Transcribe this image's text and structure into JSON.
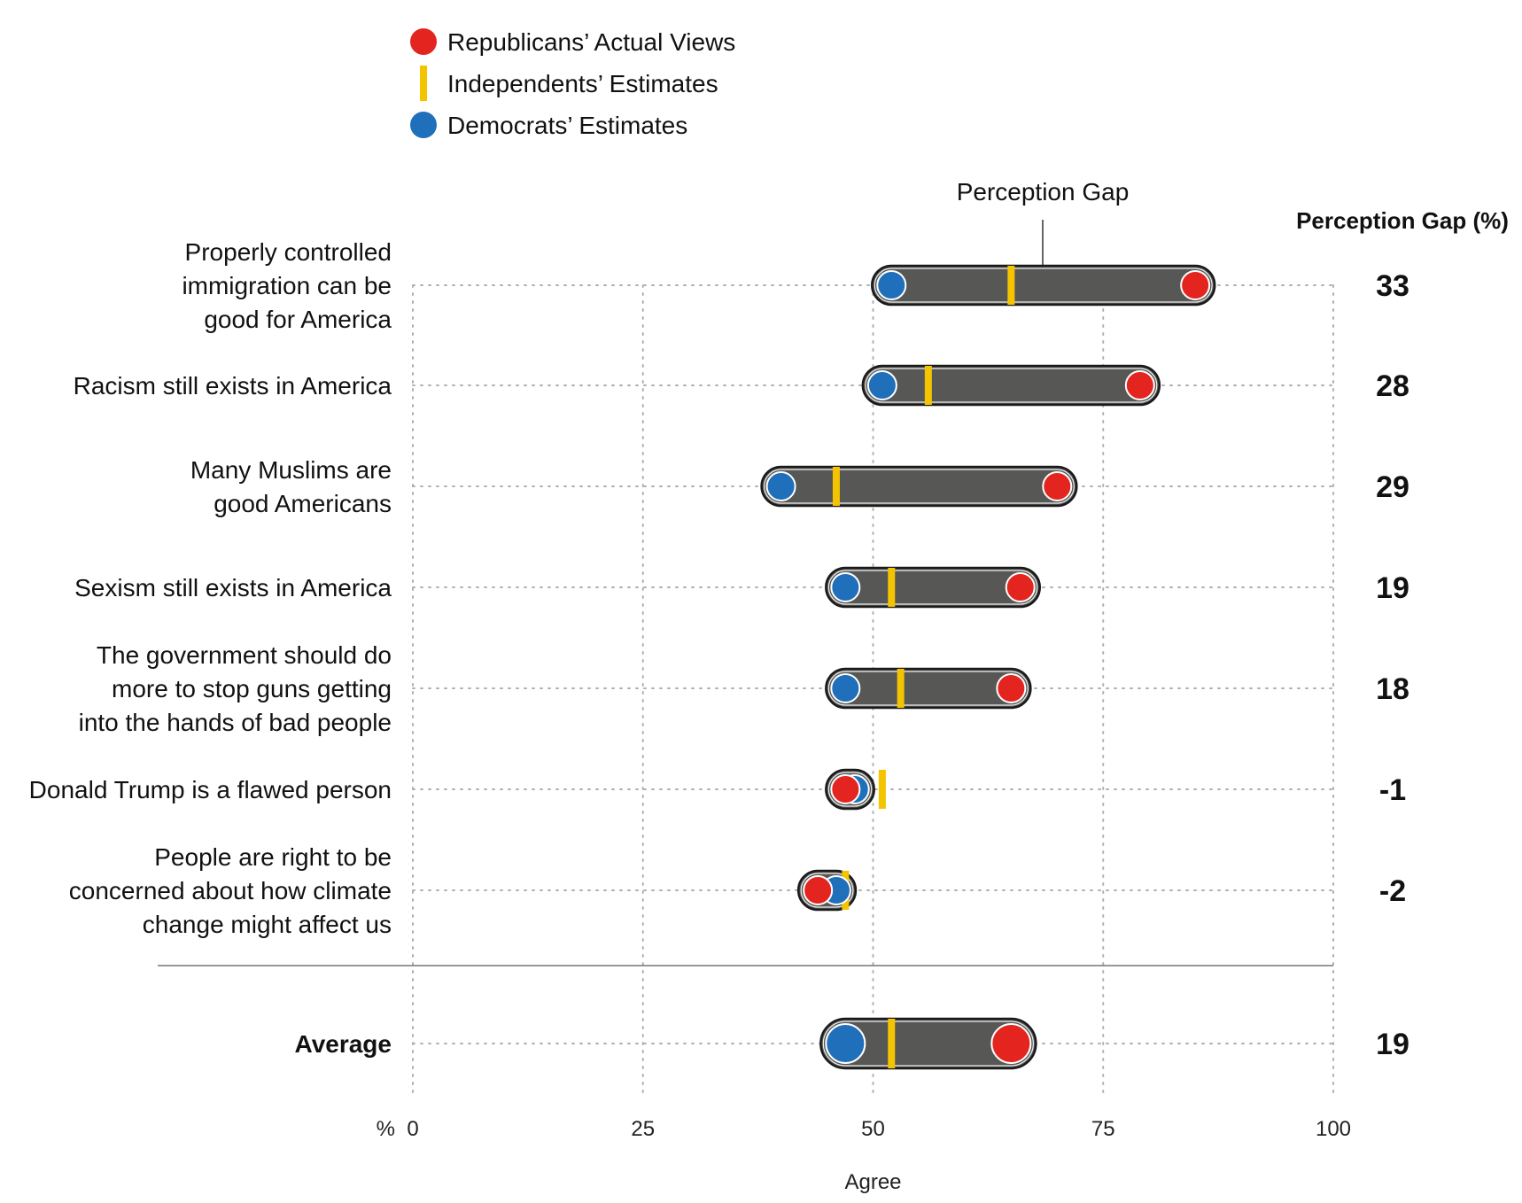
{
  "colors": {
    "republican": "#e3241f",
    "independent": "#f5c400",
    "democrat": "#1f6fba",
    "bar": "#575756",
    "grid": "#b0b0b0"
  },
  "legend": [
    {
      "label": "Republicans’ Actual Views",
      "shape": "circle",
      "color": "#e3241f"
    },
    {
      "label": "Independents’ Estimates",
      "shape": "bar",
      "color": "#f5c400"
    },
    {
      "label": "Democrats’ Estimates",
      "shape": "circle",
      "color": "#1f6fba"
    }
  ],
  "annotation": "Perception Gap",
  "gap_header": "Perception Gap (%)",
  "chart_data": {
    "type": "dot-range",
    "xlabel": "Agree",
    "x_unit": "%",
    "xlim": [
      0,
      100
    ],
    "xticks": [
      0,
      25,
      50,
      75,
      100
    ],
    "grid": true,
    "legend_position": "top-left",
    "rows": [
      {
        "label": [
          "Properly controlled",
          "immigration can be",
          "good for America"
        ],
        "democrat": 52,
        "independent": 65,
        "republican": 85,
        "gap": "33"
      },
      {
        "label": [
          "Racism still exists in America"
        ],
        "democrat": 51,
        "independent": 56,
        "republican": 79,
        "gap": "28"
      },
      {
        "label": [
          "Many Muslims are",
          "good Americans"
        ],
        "democrat": 40,
        "independent": 46,
        "republican": 70,
        "gap": "29"
      },
      {
        "label": [
          "Sexism still exists in America"
        ],
        "democrat": 47,
        "independent": 52,
        "republican": 66,
        "gap": "19"
      },
      {
        "label": [
          "The government should do",
          "more to stop guns getting",
          "into the hands of bad people"
        ],
        "democrat": 47,
        "independent": 53,
        "republican": 65,
        "gap": "18"
      },
      {
        "label": [
          "Donald Trump is a flawed person"
        ],
        "democrat": 48,
        "independent": 51,
        "republican": 47,
        "gap": "-1"
      },
      {
        "label": [
          "People are right to be",
          "concerned about how climate",
          "change might affect us"
        ],
        "democrat": 46,
        "independent": 47,
        "republican": 44,
        "gap": "-2"
      }
    ],
    "average": {
      "label": "Average",
      "democrat": 47,
      "independent": 52,
      "republican": 65,
      "gap": "19"
    }
  }
}
